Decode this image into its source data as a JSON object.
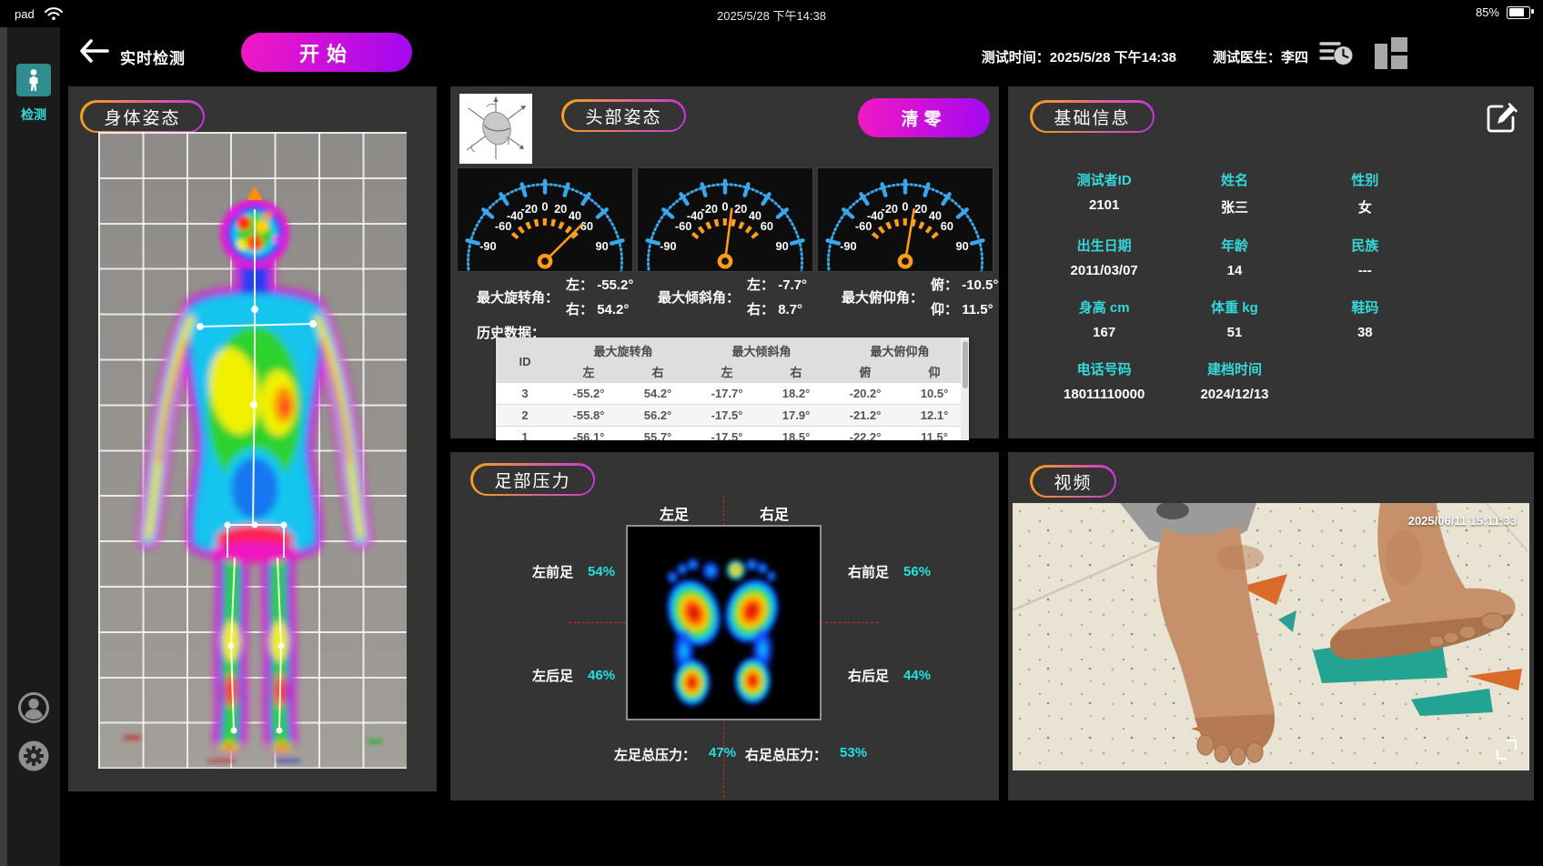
{
  "status_bar": {
    "device": "pad",
    "datetime": "2025/5/28 下午14:38",
    "battery": "85%"
  },
  "sidebar": {
    "detect": "检测"
  },
  "header": {
    "title": "实时检测",
    "start": "开始",
    "test_time_label": "测试时间：",
    "test_time": "2025/5/28  下午14:38",
    "doctor_label": "测试医生：",
    "doctor": "李四"
  },
  "body_panel": {
    "title": "身体姿态"
  },
  "head_panel": {
    "title": "头部姿态",
    "clear": "清零",
    "gauge_ticks": [
      "-90",
      "-60",
      "-40",
      "-20",
      "0",
      "20",
      "40",
      "60",
      "90"
    ],
    "gauges": [
      {
        "label": "最大旋转角：",
        "l1": "左：",
        "v1": "-55.2°",
        "l2": "右：",
        "v2": "54.2°",
        "needle": 54.2
      },
      {
        "label": "最大倾斜角：",
        "l1": "左：",
        "v1": "-7.7°",
        "l2": "右：",
        "v2": "8.7°",
        "needle": 8.7
      },
      {
        "label": "最大俯仰角：",
        "l1": "俯：",
        "v1": "-10.5°",
        "l2": "仰：",
        "v2": "11.5°",
        "needle": 11.5
      }
    ],
    "history_label": "历史数据：",
    "history": {
      "id_header": "ID",
      "groups": [
        "最大旋转角",
        "最大倾斜角",
        "最大俯仰角"
      ],
      "subs": [
        "左",
        "右",
        "左",
        "右",
        "俯",
        "仰"
      ],
      "rows": [
        [
          "3",
          "-55.2°",
          "54.2°",
          "-17.7°",
          "18.2°",
          "-20.2°",
          "10.5°"
        ],
        [
          "2",
          "-55.8°",
          "56.2°",
          "-17.5°",
          "17.9°",
          "-21.2°",
          "12.1°"
        ],
        [
          "1",
          "-56.1°",
          "55.7°",
          "-17.5°",
          "18.5°",
          "-22.2°",
          "11.5°"
        ]
      ]
    }
  },
  "foot_panel": {
    "title": "足部压力",
    "left_col": "左足",
    "right_col": "右足",
    "metrics": [
      {
        "label": "左前足",
        "value": "54%"
      },
      {
        "label": "右前足",
        "value": "56%"
      },
      {
        "label": "左后足",
        "value": "46%"
      },
      {
        "label": "右后足",
        "value": "44%"
      }
    ],
    "totals": [
      {
        "label": "左足总压力：",
        "value": "47%"
      },
      {
        "label": "右足总压力：",
        "value": "53%"
      }
    ]
  },
  "info_panel": {
    "title": "基础信息",
    "fields": [
      {
        "label": "测试者ID",
        "value": "2101"
      },
      {
        "label": "姓名",
        "value": "张三"
      },
      {
        "label": "性别",
        "value": "女"
      },
      {
        "label": "出生日期",
        "value": "2011/03/07"
      },
      {
        "label": "年龄",
        "value": "14"
      },
      {
        "label": "民族",
        "value": "---"
      },
      {
        "label": "身高 cm",
        "value": "167"
      },
      {
        "label": "体重 kg",
        "value": "51"
      },
      {
        "label": "鞋码",
        "value": "38"
      },
      {
        "label": "电话号码",
        "value": "18011110000"
      },
      {
        "label": "建档时间",
        "value": "2024/12/13"
      }
    ]
  },
  "video_panel": {
    "title": "视频",
    "timestamp": "2025/06/11 15:11:33"
  },
  "colors": {
    "accent_cyan": "#2fd9d9",
    "pill_gradient_start": "#f5a21d",
    "pill_gradient_end": "#c935e0",
    "button_gradient_start": "#ee18c5",
    "button_gradient_end": "#a608ef",
    "gauge_blue": "#39a7ec",
    "gauge_orange": "#ff9d14"
  }
}
